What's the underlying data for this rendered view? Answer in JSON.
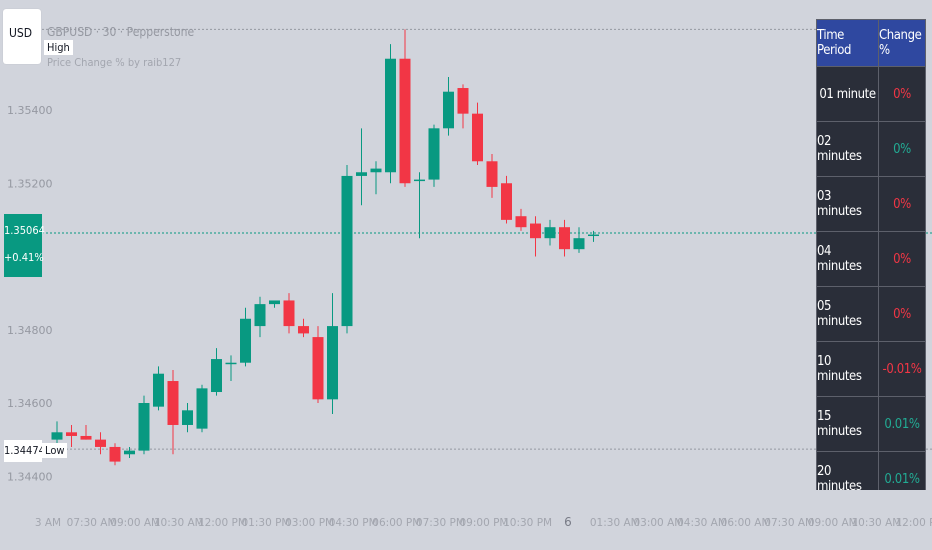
{
  "header": {
    "currency": "USD",
    "symbol_title": "GBPUSD · 30 · Pepperstone",
    "indicator_title": "Price Change % by raib127",
    "high_label": "High",
    "low_label": "Low"
  },
  "price_axis": {
    "last_price": "1.35064",
    "last_change": "+0.41%",
    "low_price": "1.34474"
  },
  "date_marker": "6",
  "colors": {
    "background": "#d1d4dc",
    "up": "#089981",
    "down": "#f23645",
    "table_bg": "#2a2e39",
    "table_header": "#2f48a0",
    "negative_text": "#f23645",
    "positive_text": "#22ab94"
  },
  "table": {
    "headers": [
      "Time Period",
      "Change %"
    ],
    "rows": [
      {
        "period": "01 minute",
        "change": "0%",
        "sign": "neg"
      },
      {
        "period": "02 minutes",
        "change": "0%",
        "sign": "pos"
      },
      {
        "period": "03 minutes",
        "change": "0%",
        "sign": "neg"
      },
      {
        "period": "04 minutes",
        "change": "0%",
        "sign": "neg"
      },
      {
        "period": "05 minutes",
        "change": "0%",
        "sign": "neg"
      },
      {
        "period": "10 minutes",
        "change": "-0.01%",
        "sign": "neg"
      },
      {
        "period": "15 minutes",
        "change": "0.01%",
        "sign": "pos"
      },
      {
        "period": "20 minutes",
        "change": "0.01%",
        "sign": "pos"
      }
    ]
  },
  "chart_data": {
    "type": "candlestick",
    "y_ticks": [
      "1.35400",
      "1.35200",
      "1.34800",
      "1.34600",
      "1.34400"
    ],
    "y_tick_values": [
      1.354,
      1.352,
      1.348,
      1.346,
      1.344
    ],
    "ylim": [
      1.3432,
      1.3565
    ],
    "x_ticks": [
      "3 AM",
      "07:30 AM",
      "09:00 AM",
      "10:30 AM",
      "12:00 PM",
      "01:30 PM",
      "03:00 PM",
      "04:30 PM",
      "06:00 PM",
      "07:30 PM",
      "09:00 PM",
      "10:30 PM",
      "6",
      "01:30 AM",
      "03:00 AM",
      "04:30 AM",
      "06:00 AM",
      "07:30 AM",
      "09:00 AM",
      "10:30 AM",
      "12:00 PM"
    ],
    "high_line": 1.3562,
    "low_line": 1.34474,
    "last_line": 1.35064,
    "candles": [
      {
        "o": 1.345,
        "h": 1.3455,
        "l": 1.3446,
        "c": 1.3452
      },
      {
        "o": 1.3452,
        "h": 1.3454,
        "l": 1.3448,
        "c": 1.3451
      },
      {
        "o": 1.3451,
        "h": 1.3454,
        "l": 1.345,
        "c": 1.345
      },
      {
        "o": 1.345,
        "h": 1.3452,
        "l": 1.3446,
        "c": 1.3448
      },
      {
        "o": 1.3448,
        "h": 1.3449,
        "l": 1.3443,
        "c": 1.3444
      },
      {
        "o": 1.3446,
        "h": 1.3448,
        "l": 1.3445,
        "c": 1.3447
      },
      {
        "o": 1.3447,
        "h": 1.3462,
        "l": 1.3446,
        "c": 1.346
      },
      {
        "o": 1.3459,
        "h": 1.347,
        "l": 1.3458,
        "c": 1.3468
      },
      {
        "o": 1.3466,
        "h": 1.3469,
        "l": 1.3446,
        "c": 1.3454
      },
      {
        "o": 1.3454,
        "h": 1.346,
        "l": 1.3452,
        "c": 1.3458
      },
      {
        "o": 1.3453,
        "h": 1.3465,
        "l": 1.3452,
        "c": 1.3464
      },
      {
        "o": 1.3463,
        "h": 1.3475,
        "l": 1.3462,
        "c": 1.3472
      },
      {
        "o": 1.3471,
        "h": 1.3473,
        "l": 1.3466,
        "c": 1.3471
      },
      {
        "o": 1.3471,
        "h": 1.3486,
        "l": 1.347,
        "c": 1.3483
      },
      {
        "o": 1.3481,
        "h": 1.3489,
        "l": 1.3478,
        "c": 1.3487
      },
      {
        "o": 1.3487,
        "h": 1.3488,
        "l": 1.3486,
        "c": 1.3488
      },
      {
        "o": 1.3488,
        "h": 1.349,
        "l": 1.3479,
        "c": 1.3481
      },
      {
        "o": 1.3481,
        "h": 1.3483,
        "l": 1.3478,
        "c": 1.3479
      },
      {
        "o": 1.3478,
        "h": 1.3481,
        "l": 1.346,
        "c": 1.3461
      },
      {
        "o": 1.3461,
        "h": 1.349,
        "l": 1.3457,
        "c": 1.3481
      },
      {
        "o": 1.3481,
        "h": 1.3525,
        "l": 1.3479,
        "c": 1.3522
      },
      {
        "o": 1.3522,
        "h": 1.3535,
        "l": 1.3514,
        "c": 1.3523
      },
      {
        "o": 1.3523,
        "h": 1.3526,
        "l": 1.3517,
        "c": 1.3524
      },
      {
        "o": 1.3523,
        "h": 1.3558,
        "l": 1.352,
        "c": 1.3554
      },
      {
        "o": 1.3554,
        "h": 1.3562,
        "l": 1.3519,
        "c": 1.352
      },
      {
        "o": 1.3521,
        "h": 1.3523,
        "l": 1.3505,
        "c": 1.3521
      },
      {
        "o": 1.3521,
        "h": 1.3536,
        "l": 1.3519,
        "c": 1.3535
      },
      {
        "o": 1.3535,
        "h": 1.3549,
        "l": 1.3533,
        "c": 1.3545
      },
      {
        "o": 1.3546,
        "h": 1.3547,
        "l": 1.3535,
        "c": 1.3539
      },
      {
        "o": 1.3539,
        "h": 1.3542,
        "l": 1.3525,
        "c": 1.3526
      },
      {
        "o": 1.3526,
        "h": 1.3528,
        "l": 1.3516,
        "c": 1.3519
      },
      {
        "o": 1.352,
        "h": 1.3522,
        "l": 1.3509,
        "c": 1.351
      },
      {
        "o": 1.3511,
        "h": 1.3513,
        "l": 1.3507,
        "c": 1.3508
      },
      {
        "o": 1.3509,
        "h": 1.3511,
        "l": 1.35,
        "c": 1.3505
      },
      {
        "o": 1.3505,
        "h": 1.351,
        "l": 1.3503,
        "c": 1.3508
      },
      {
        "o": 1.3508,
        "h": 1.351,
        "l": 1.35,
        "c": 1.3502
      },
      {
        "o": 1.3502,
        "h": 1.3508,
        "l": 1.3501,
        "c": 1.3505
      },
      {
        "o": 1.3506,
        "h": 1.3507,
        "l": 1.3504,
        "c": 1.3506
      }
    ]
  }
}
